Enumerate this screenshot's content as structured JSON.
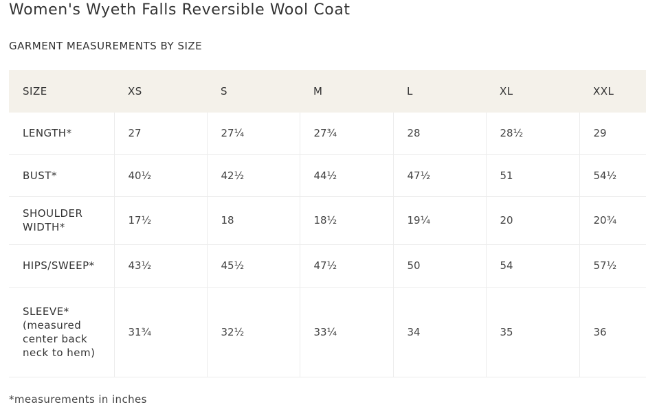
{
  "product": {
    "title": "Women's Wyeth Falls Reversible Wool Coat"
  },
  "section": {
    "heading": "GARMENT MEASUREMENTS BY SIZE"
  },
  "table": {
    "header": [
      "SIZE",
      "XS",
      "S",
      "M",
      "L",
      "XL",
      "XXL"
    ],
    "rows": [
      {
        "label": "LENGTH*",
        "values": [
          "27",
          "27¼",
          "27¾",
          "28",
          "28½",
          "29"
        ]
      },
      {
        "label": "BUST*",
        "values": [
          "40½",
          "42½",
          "44½",
          "47½",
          "51",
          "54½"
        ]
      },
      {
        "label": "SHOULDER WIDTH*",
        "values": [
          "17½",
          "18",
          "18½",
          "19¼",
          "20",
          "20¾"
        ]
      },
      {
        "label": "HIPS/SWEEP*",
        "values": [
          "43½",
          "45½",
          "47½",
          "50",
          "54",
          "57½"
        ]
      },
      {
        "label": "SLEEVE* (measured center back neck to hem)",
        "values": [
          "31¾",
          "32½",
          "33¼",
          "34",
          "35",
          "36"
        ]
      }
    ]
  },
  "footnote": "*measurements in inches"
}
